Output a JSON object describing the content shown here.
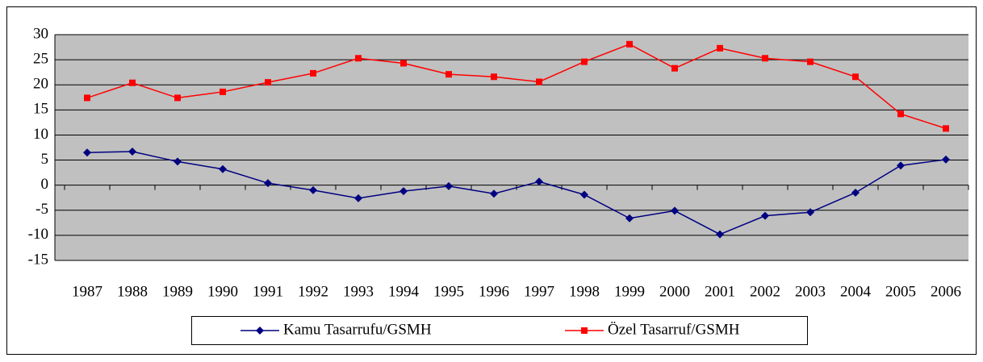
{
  "chart_data": {
    "type": "line",
    "categories": [
      "1987",
      "1988",
      "1989",
      "1990",
      "1991",
      "1992",
      "1993",
      "1994",
      "1995",
      "1996",
      "1997",
      "1998",
      "1999",
      "2000",
      "2001",
      "2002",
      "2003",
      "2004",
      "2005",
      "2006"
    ],
    "series": [
      {
        "name": "Kamu Tasarrufu/GSMH",
        "color": "#000080",
        "marker": "diamond",
        "values": [
          6.5,
          6.7,
          4.7,
          3.2,
          0.4,
          -1.0,
          -2.6,
          -1.2,
          -0.2,
          -1.7,
          0.7,
          -1.9,
          -6.6,
          -5.1,
          -9.8,
          -6.1,
          -5.4,
          -1.5,
          3.9,
          5.1
        ]
      },
      {
        "name": "Özel Tasarruf/GSMH",
        "color": "#ff0000",
        "marker": "square",
        "values": [
          17.4,
          20.4,
          17.4,
          18.6,
          20.5,
          22.3,
          25.3,
          24.3,
          22.1,
          21.6,
          20.6,
          24.6,
          28.1,
          23.3,
          27.3,
          25.3,
          24.6,
          21.6,
          14.2,
          11.3
        ]
      }
    ],
    "ylim": [
      -15,
      30
    ],
    "yticks": [
      -15,
      -10,
      -5,
      0,
      5,
      10,
      15,
      20,
      25,
      30
    ],
    "grid": true,
    "legend": "bottom",
    "plot_background": "#c0c0c0"
  }
}
